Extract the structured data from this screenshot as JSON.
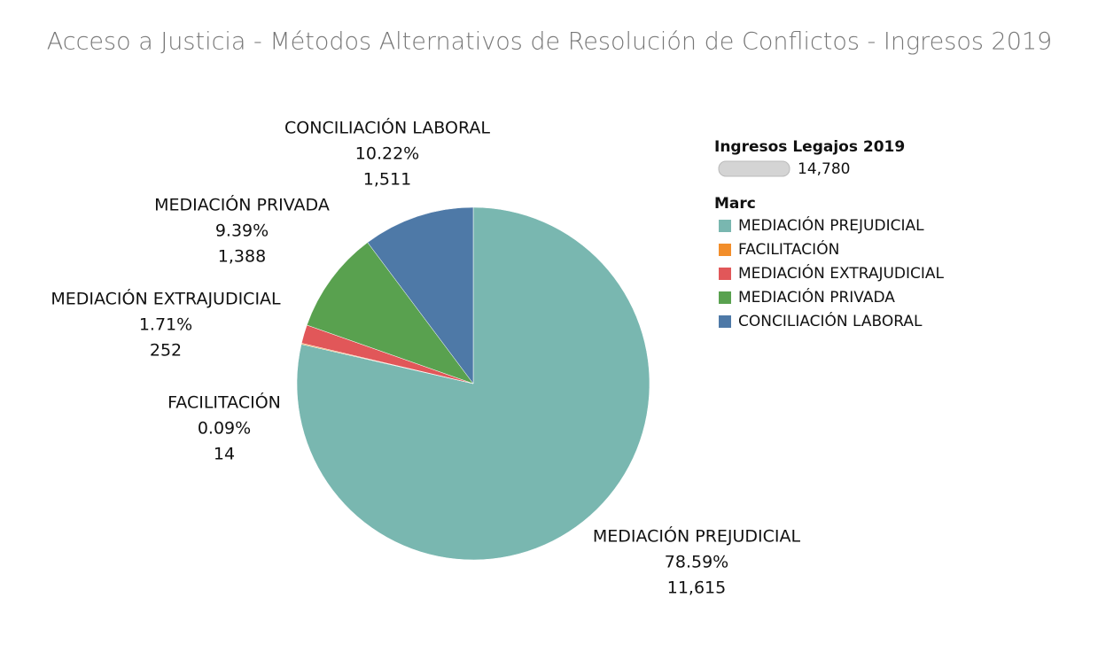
{
  "chart_data": {
    "type": "pie",
    "title": "Acceso a Justicia - Métodos Alternativos de Resolución de Conflictos - Ingresos 2019",
    "categories": [
      "MEDIACIÓN PREJUDICIAL",
      "FACILITACIÓN",
      "MEDIACIÓN EXTRAJUDICIAL",
      "MEDIACIÓN PRIVADA",
      "CONCILIACIÓN LABORAL"
    ],
    "values": [
      11615,
      14,
      252,
      1388,
      1511
    ],
    "value_labels": [
      "11,615",
      "14",
      "252",
      "1,388",
      "1,511"
    ],
    "percent_labels": [
      "78.59%",
      "0.09%",
      "1.71%",
      "9.39%",
      "10.22%"
    ],
    "colors": [
      "#79b7b0",
      "#f28e2b",
      "#e15759",
      "#59a14f",
      "#4e79a7"
    ],
    "size_legend": {
      "title": "Ingresos Legajos 2019",
      "value": 14780,
      "label": "14,780"
    },
    "legend_title": "Marc"
  }
}
